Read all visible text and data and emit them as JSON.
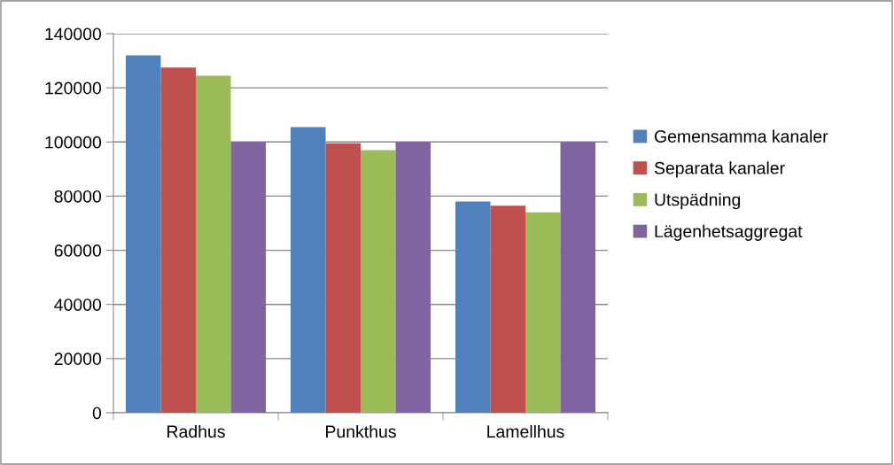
{
  "chart_data": {
    "type": "bar",
    "categories": [
      "Radhus",
      "Punkthus",
      "Lamellhus"
    ],
    "series": [
      {
        "name": "Gemensamma kanaler",
        "color": "#4f81bd",
        "values": [
          132000,
          105500,
          78000
        ]
      },
      {
        "name": "Separata kanaler",
        "color": "#c0504d",
        "values": [
          127500,
          99500,
          76500
        ]
      },
      {
        "name": "Utspädning",
        "color": "#9bbb59",
        "values": [
          124500,
          97000,
          74000
        ]
      },
      {
        "name": "Lägenhetsaggregat",
        "color": "#8064a2",
        "values": [
          100000,
          100000,
          100000
        ]
      }
    ],
    "ylim": [
      0,
      140000
    ],
    "yticks": [
      0,
      20000,
      40000,
      60000,
      80000,
      100000,
      120000,
      140000
    ],
    "grid": "y",
    "legend": "right"
  }
}
